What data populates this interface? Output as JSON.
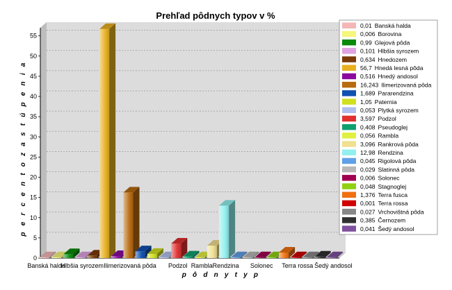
{
  "chart_data": {
    "type": "bar",
    "title": "Prehľad pôdnych typov v %",
    "xlabel": "p ô d n y   t y p",
    "ylabel": "p e r c e n t o   z a s t ú p e n i a",
    "ylim": [
      0,
      57
    ],
    "yticks": [
      0,
      5,
      10,
      15,
      20,
      25,
      30,
      35,
      40,
      45,
      50,
      55
    ],
    "grid": true,
    "legend_position": "right",
    "x_tick_labels": [
      "Banská halda",
      "Hlbšia syrozem",
      "Ilimerizovaná pôda",
      "Podzol",
      "Rambla",
      "Rendzina",
      "Solonec",
      "Terra rossa",
      "Šedý andosol"
    ],
    "categories": [
      "Banská halda",
      "Borovina",
      "Glejová pôda",
      "Hlbšia syrozem",
      "Hnedozem",
      "Hnedá lesná pôda",
      "Hnedý andosol",
      "Ilimerizovaná pôda",
      "Pararendzina",
      "Paternia",
      "Plytká syrozem",
      "Podzol",
      "Pseudoglej",
      "Rambla",
      "Rankrová pôda",
      "Rendzina",
      "Rigolová pôda",
      "Slatinná pôda",
      "Solonec",
      "Stagnoglej",
      "Terra fusca",
      "Terra rossa",
      "Vrchovištná pôda",
      "Černozem",
      "Šedý andosol"
    ],
    "values": [
      0.01,
      0.006,
      0.99,
      0.101,
      0.634,
      56.7,
      0.516,
      16.243,
      1.689,
      1.05,
      0.053,
      3.597,
      0.408,
      0.056,
      3.096,
      12.98,
      0.045,
      0.029,
      0.006,
      0.048,
      1.376,
      0.001,
      0.027,
      0.385,
      0.041
    ],
    "legend": [
      {
        "value": "0,01",
        "name": "Banská halda"
      },
      {
        "value": "0,006",
        "name": "Borovina"
      },
      {
        "value": "0,99",
        "name": "Glejová pôda"
      },
      {
        "value": "0,101",
        "name": "Hlbšia syrozem"
      },
      {
        "value": "0,634",
        "name": "Hnedozem"
      },
      {
        "value": "56,7",
        "name": "Hnedá lesná pôda"
      },
      {
        "value": "0,516",
        "name": "Hnedý andosol"
      },
      {
        "value": "16,243",
        "name": "Ilimerizovaná pôda"
      },
      {
        "value": "1,689",
        "name": "Pararendzina"
      },
      {
        "value": "1,05",
        "name": "Paternia"
      },
      {
        "value": "0,053",
        "name": "Plytká syrozem"
      },
      {
        "value": "3,597",
        "name": "Podzol"
      },
      {
        "value": "0,408",
        "name": "Pseudoglej"
      },
      {
        "value": "0,056",
        "name": "Rambla"
      },
      {
        "value": "3,096",
        "name": "Rankrová pôda"
      },
      {
        "value": "12,98",
        "name": "Rendzina"
      },
      {
        "value": "0,045",
        "name": "Rigolová pôda"
      },
      {
        "value": "0,029",
        "name": "Slatinná pôda"
      },
      {
        "value": "0,006",
        "name": "Solonec"
      },
      {
        "value": "0,048",
        "name": "Stagnoglej"
      },
      {
        "value": "1,376",
        "name": "Terra fusca"
      },
      {
        "value": "0,001",
        "name": "Terra rossa"
      },
      {
        "value": "0,027",
        "name": "Vrchovištná pôda"
      },
      {
        "value": "0,385",
        "name": "Černozem"
      },
      {
        "value": "0,041",
        "name": "Šedý andosol"
      }
    ],
    "colors": [
      "#f4b6b6",
      "#f6f67a",
      "#0a8a0a",
      "#e0a2e0",
      "#7a3a08",
      "#e8b020",
      "#8a0aa0",
      "#b86a10",
      "#1050b0",
      "#d0e020",
      "#b0c0ee",
      "#e03030",
      "#10a070",
      "#e0f040",
      "#f0e090",
      "#90f0ee",
      "#60a0e8",
      "#b8b8b8",
      "#a00050",
      "#90d010",
      "#f07010",
      "#d00000",
      "#888888",
      "#303030",
      "#8050a0"
    ]
  }
}
